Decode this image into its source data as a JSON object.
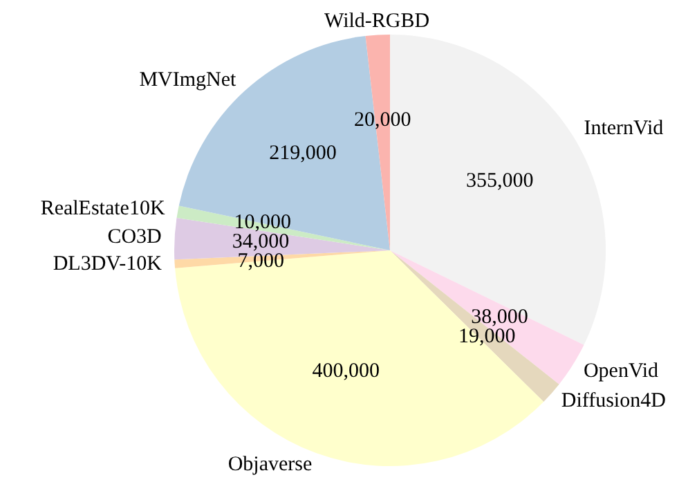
{
  "chart_data": {
    "type": "pie",
    "categories": [
      "InternVid",
      "OpenVid",
      "Diffusion4D",
      "Objaverse",
      "DL3DV-10K",
      "CO3D",
      "RealEstate10K",
      "MVImgNet",
      "Wild-RGBD"
    ],
    "values": [
      355000,
      38000,
      19000,
      400000,
      7000,
      34000,
      10000,
      219000,
      20000
    ],
    "value_labels": [
      "355,000",
      "38,000",
      "19,000",
      "400,000",
      "7,000",
      "34,000",
      "10,000",
      "219,000",
      "20,000"
    ],
    "colors": [
      "#f2f2f2",
      "#fddaec",
      "#e5d8bd",
      "#ffffcc",
      "#fed9a6",
      "#decbe4",
      "#ccebc5",
      "#b3cde3",
      "#fbb4ae"
    ]
  }
}
